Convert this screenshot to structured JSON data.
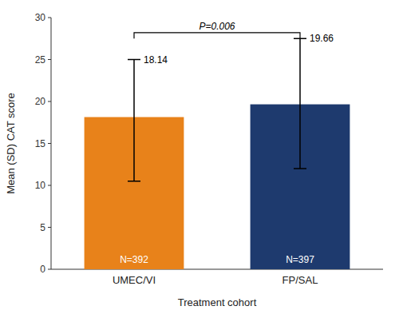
{
  "chart_data": {
    "type": "bar",
    "categories": [
      "UMEC/VI",
      "FP/SAL"
    ],
    "values": [
      18.14,
      19.66
    ],
    "error_upper": [
      6.86,
      7.84
    ],
    "error_lower": [
      7.64,
      7.66
    ],
    "colors": [
      "#E8821A",
      "#1E3A6E"
    ],
    "data_labels": true,
    "value_labels": [
      "18.14",
      "19.66"
    ],
    "n_labels": [
      "N=392",
      "N=397"
    ],
    "xlabel": "Treatment cohort",
    "ylabel": "Mean (SD) CAT score",
    "ylim": [
      0,
      30
    ],
    "yticks": [
      0,
      5,
      10,
      15,
      20,
      25,
      30
    ],
    "grid": false,
    "bracket": {
      "text": "P=0.006",
      "y": 28.2,
      "drop": 0.7
    }
  }
}
